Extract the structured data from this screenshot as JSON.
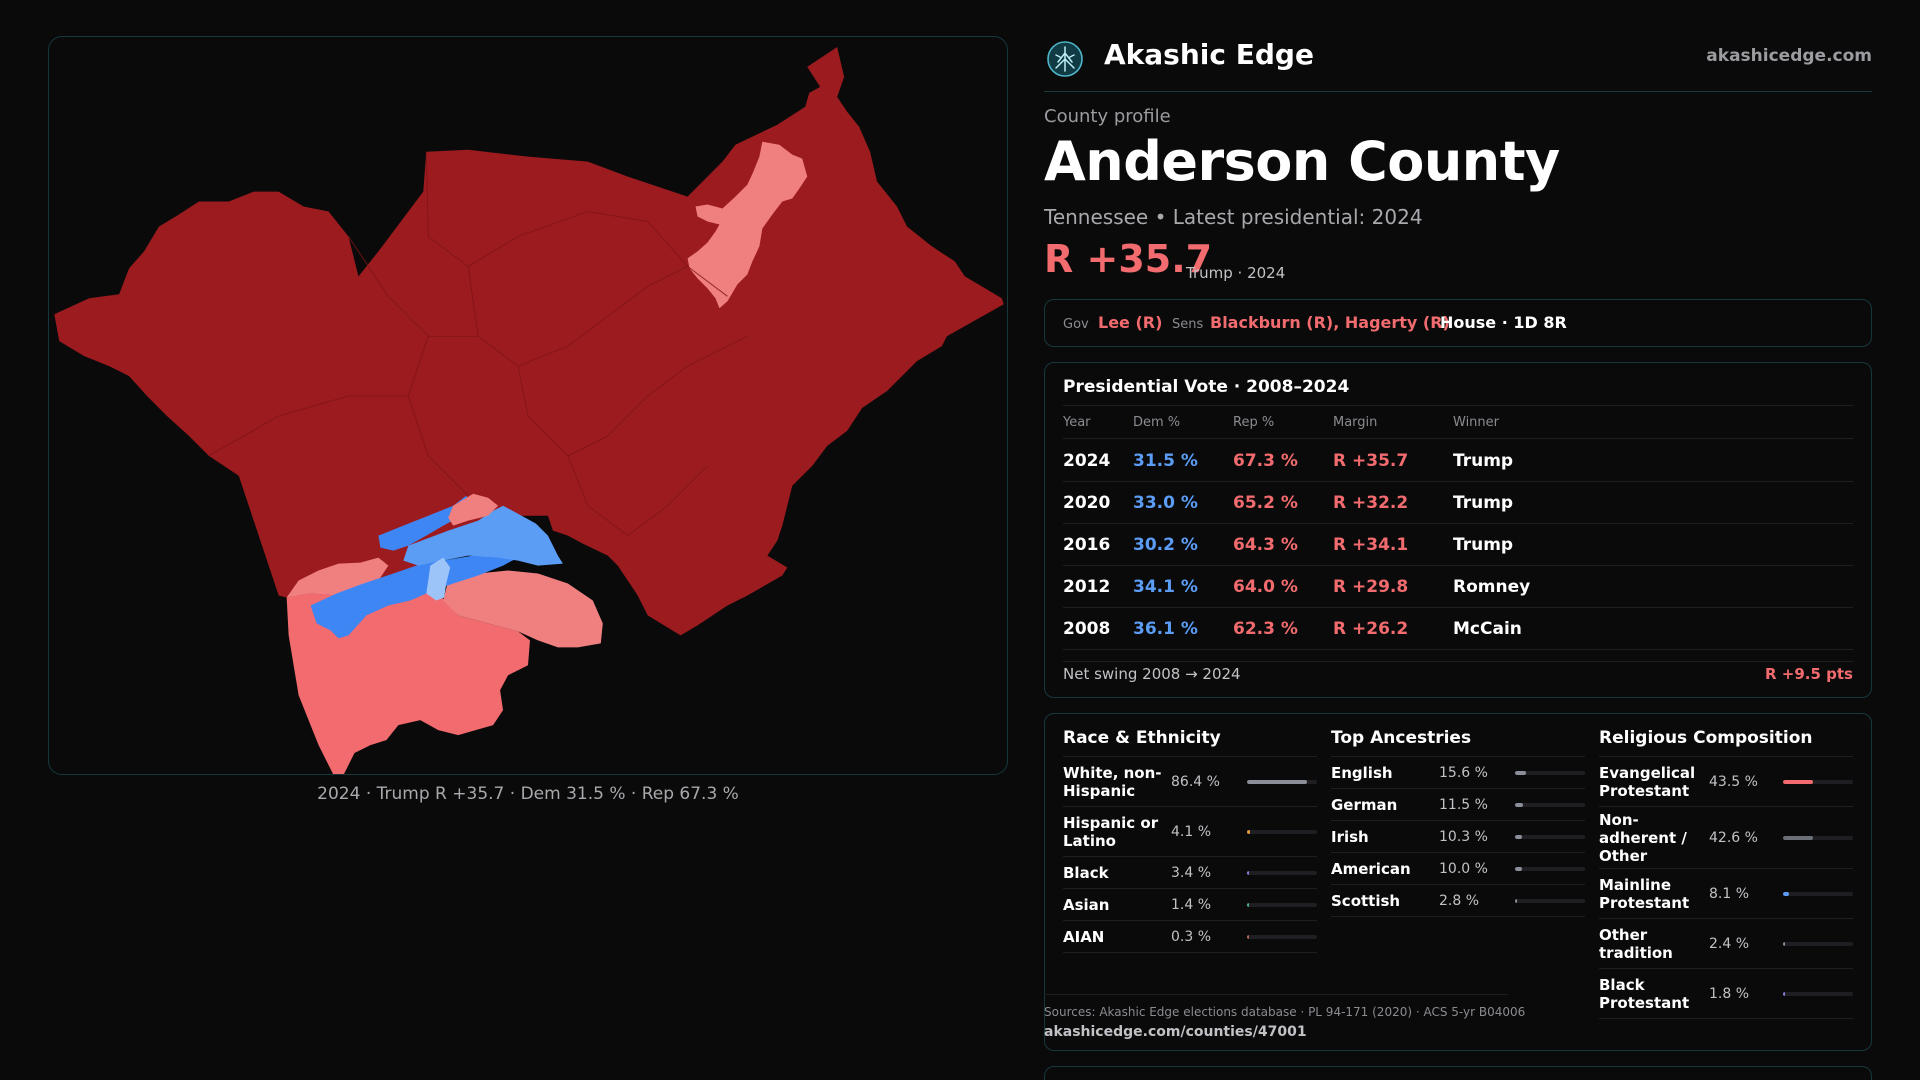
{
  "brand": {
    "name": "Akashic Edge",
    "url": "akashicedge.com",
    "logo_icon": "tree-emblem-icon"
  },
  "profile": {
    "eyebrow": "County profile",
    "title": "Anderson County",
    "subtitle": "Tennessee • Latest presidential: 2024",
    "margin": "R +35.7",
    "margin_note": "Trump · 2024"
  },
  "officials": {
    "gov_label": "Gov",
    "gov": "Lee (R)",
    "sens_label": "Sens",
    "sens": "Blackburn (R), Hagerty (R)",
    "house": "House · 1D 8R"
  },
  "presidential": {
    "title": "Presidential Vote · 2008–2024",
    "headers": {
      "year": "Year",
      "dem": "Dem %",
      "rep": "Rep %",
      "margin": "Margin",
      "winner": "Winner"
    },
    "rows": [
      {
        "year": "2024",
        "dem": "31.5 %",
        "rep": "67.3 %",
        "margin": "R +35.7",
        "winner": "Trump"
      },
      {
        "year": "2020",
        "dem": "33.0 %",
        "rep": "65.2 %",
        "margin": "R +32.2",
        "winner": "Trump"
      },
      {
        "year": "2016",
        "dem": "30.2 %",
        "rep": "64.3 %",
        "margin": "R +34.1",
        "winner": "Trump"
      },
      {
        "year": "2012",
        "dem": "34.1 %",
        "rep": "64.0 %",
        "margin": "R +29.8",
        "winner": "Romney"
      },
      {
        "year": "2008",
        "dem": "36.1 %",
        "rep": "62.3 %",
        "margin": "R +26.2",
        "winner": "McCain"
      }
    ],
    "swing_label": "Net swing 2008 → 2024",
    "swing_value": "R +9.5 pts"
  },
  "race": {
    "title": "Race & Ethnicity",
    "items": [
      {
        "name": "White, non-\nHispanic",
        "pct": "86.4 %",
        "value": 86.4,
        "color": "#8a8f99"
      },
      {
        "name": "Hispanic or\nLatino",
        "pct": "4.1 %",
        "value": 4.1,
        "color": "#e89a3c"
      },
      {
        "name": "Black",
        "pct": "3.4 %",
        "value": 3.4,
        "color": "#8a7fd6"
      },
      {
        "name": "Asian",
        "pct": "1.4 %",
        "value": 1.4,
        "color": "#52b08a"
      },
      {
        "name": "AIAN",
        "pct": "0.3 %",
        "value": 0.3,
        "color": "#b06a52"
      }
    ]
  },
  "ancestry": {
    "title": "Top Ancestries",
    "items": [
      {
        "name": "English",
        "pct": "15.6 %",
        "value": 15.6,
        "color": "#8a8f99"
      },
      {
        "name": "German",
        "pct": "11.5 %",
        "value": 11.5,
        "color": "#8a8f99"
      },
      {
        "name": "Irish",
        "pct": "10.3 %",
        "value": 10.3,
        "color": "#8a8f99"
      },
      {
        "name": "American",
        "pct": "10.0 %",
        "value": 10.0,
        "color": "#8a8f99"
      },
      {
        "name": "Scottish",
        "pct": "2.8 %",
        "value": 2.8,
        "color": "#8a8f99"
      }
    ]
  },
  "religion": {
    "title": "Religious Composition",
    "items": [
      {
        "name": "Evangelical\nProtestant",
        "pct": "43.5 %",
        "value": 43.5,
        "color": "#f26b6e"
      },
      {
        "name": "Non-\nadherent /\nOther",
        "pct": "42.6 %",
        "value": 42.6,
        "color": "#6b6f77"
      },
      {
        "name": "Mainline\nProtestant",
        "pct": "8.1 %",
        "value": 8.1,
        "color": "#5b9cf5"
      },
      {
        "name": "Other\ntradition",
        "pct": "2.4 %",
        "value": 2.4,
        "color": "#8a8f99"
      },
      {
        "name": "Black\nProtestant",
        "pct": "1.8 %",
        "value": 1.8,
        "color": "#8a7fd6"
      }
    ]
  },
  "sources": {
    "text": "Sources: Akashic Edge elections database · PL 94-171 (2020) · ACS 5-yr B04006",
    "link": "akashicedge.com/counties/47001"
  },
  "map": {
    "caption": "2024 · Trump R +35.7 · Dem 31.5 % · Rep 67.3 %",
    "colors": {
      "safe_r": "#9c1b1f",
      "lean_r": "#f26b6e",
      "likely_r": "#f08080",
      "lean_d": "#5b9cf5",
      "likely_d": "#3f86f5",
      "tossup_d": "#9cc4f8"
    }
  }
}
